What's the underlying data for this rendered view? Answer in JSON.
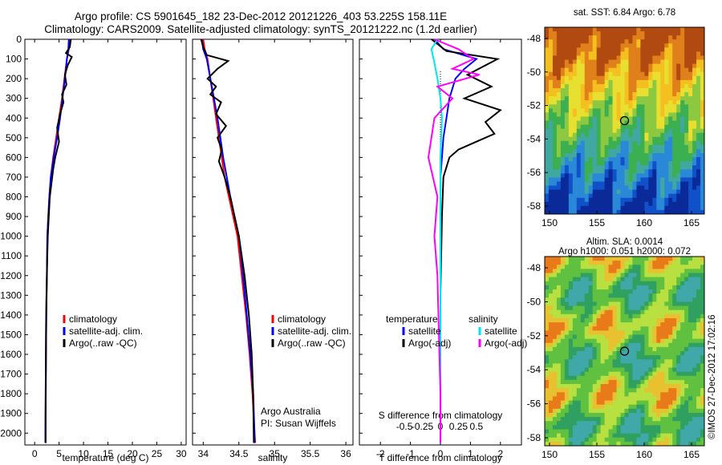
{
  "header": {
    "line1": "Argo profile: CS 5901645_182 23-Dec-2012 20121226_403 53.225S 158.11E",
    "line2": "Climatology: CARS2009. Satellite-adjusted climatology: synTS_20121222.nc (1.2d earlier)"
  },
  "colors": {
    "climatology": "#ff0000",
    "satellite": "#0000ff",
    "argo": "#000000",
    "sat_salinity": "#00e5ee",
    "argo_adj_salinity": "#ff00ff"
  },
  "chart_data": [
    {
      "type": "line",
      "panel": "temperature",
      "xlabel": "temperature (deg C)",
      "xlim": [
        -2,
        31
      ],
      "ylim": [
        2060,
        0
      ],
      "xticks": [
        0,
        5,
        10,
        15,
        20,
        25,
        30
      ],
      "yticks": [
        0,
        100,
        200,
        300,
        400,
        500,
        600,
        700,
        800,
        900,
        1000,
        1100,
        1200,
        1300,
        1400,
        1500,
        1600,
        1700,
        1800,
        1900,
        2000
      ],
      "legend": {
        "position": "lower-center",
        "entries": [
          "climatology",
          "satellite-adj. clim.",
          "Argo(..raw -QC)"
        ]
      },
      "series": [
        {
          "name": "climatology",
          "color": "red",
          "x": [
            7.2,
            7.0,
            6.6,
            6.1,
            5.6,
            5.0,
            4.4,
            3.8,
            3.3,
            3.0,
            2.8,
            2.6,
            2.5,
            2.35,
            2.3,
            2.25,
            2.2,
            2.2
          ],
          "y": [
            0,
            50,
            100,
            200,
            300,
            400,
            500,
            600,
            700,
            800,
            900,
            1000,
            1200,
            1400,
            1600,
            1800,
            2000,
            2050
          ]
        },
        {
          "name": "satellite-adj. clim.",
          "color": "blue",
          "x": [
            7.0,
            6.9,
            6.6,
            6.2,
            5.7,
            5.2,
            4.6,
            3.9,
            3.3,
            3.0,
            2.8,
            2.6,
            2.5,
            2.35,
            2.3,
            2.25,
            2.2,
            2.2
          ],
          "y": [
            0,
            50,
            100,
            200,
            300,
            400,
            500,
            600,
            700,
            800,
            900,
            1000,
            1200,
            1400,
            1600,
            1800,
            2000,
            2050
          ]
        },
        {
          "name": "Argo(..raw -QC)",
          "color": "black",
          "x": [
            7.4,
            7.2,
            6.4,
            7.6,
            6.8,
            6.2,
            6.5,
            5.6,
            5.9,
            5.2,
            4.6,
            5.0,
            4.2,
            3.8,
            3.5,
            3.1,
            2.9,
            2.7,
            2.55,
            2.45,
            2.35,
            2.3,
            2.25,
            2.25
          ],
          "y": [
            0,
            40,
            70,
            90,
            130,
            180,
            230,
            280,
            320,
            380,
            450,
            520,
            600,
            660,
            720,
            800,
            900,
            1000,
            1150,
            1300,
            1500,
            1700,
            1900,
            2050
          ]
        }
      ]
    },
    {
      "type": "line",
      "panel": "salinity",
      "xlabel": "salinity",
      "xlim": [
        33.85,
        36.1
      ],
      "ylim": [
        2060,
        0
      ],
      "xticks": [
        34,
        34.5,
        35,
        35.5,
        36
      ],
      "legend": {
        "position": "lower-center",
        "entries": [
          "climatology",
          "satellite-adj. clim.",
          "Argo(..raw -QC)"
        ]
      },
      "annotations": [
        "Argo Australia",
        "PI: Susan Wijffels"
      ],
      "series": [
        {
          "name": "climatology",
          "color": "red",
          "x": [
            34.0,
            34.02,
            34.06,
            34.1,
            34.14,
            34.18,
            34.22,
            34.26,
            34.3,
            34.36,
            34.42,
            34.48,
            34.54,
            34.6,
            34.65,
            34.69,
            34.72,
            34.73
          ],
          "y": [
            0,
            50,
            100,
            200,
            300,
            400,
            500,
            600,
            700,
            800,
            900,
            1000,
            1200,
            1400,
            1600,
            1800,
            2000,
            2050
          ]
        },
        {
          "name": "satellite-adj. clim.",
          "color": "blue",
          "x": [
            33.98,
            34.0,
            34.05,
            34.1,
            34.15,
            34.2,
            34.24,
            34.28,
            34.33,
            34.38,
            34.44,
            34.5,
            34.56,
            34.61,
            34.66,
            34.7,
            34.72,
            34.72
          ],
          "y": [
            0,
            50,
            100,
            200,
            300,
            400,
            500,
            600,
            700,
            800,
            900,
            1000,
            1200,
            1400,
            1600,
            1800,
            2000,
            2050
          ]
        },
        {
          "name": "Argo(..raw -QC)",
          "color": "black",
          "x": [
            33.97,
            34.0,
            34.05,
            34.35,
            34.2,
            34.06,
            34.18,
            34.1,
            34.25,
            34.18,
            34.32,
            34.2,
            34.26,
            34.22,
            34.3,
            34.38,
            34.44,
            34.5,
            34.58,
            34.64,
            34.68,
            34.7,
            34.71
          ],
          "y": [
            0,
            40,
            80,
            110,
            150,
            200,
            240,
            280,
            320,
            380,
            440,
            500,
            560,
            620,
            700,
            800,
            900,
            1000,
            1200,
            1400,
            1600,
            1800,
            2050
          ]
        }
      ]
    },
    {
      "type": "line",
      "panel": "difference",
      "xlabel": "T difference from climatology",
      "secondary_xlabel": "S difference from climatology",
      "xlim": [
        -2.7,
        2.7
      ],
      "ylim": [
        2060,
        0
      ],
      "xticks": [
        -2,
        -1,
        0,
        1,
        2
      ],
      "secondary_xticks": [
        "-0.5",
        "-0.25",
        "0",
        "0.25",
        "0.5"
      ],
      "legend": {
        "position": "lower-center",
        "headers": [
          "temperature",
          "salinity"
        ],
        "entries": [
          "satellite",
          "Argo(-adj)",
          "satellite",
          "Argo(-adj)"
        ]
      },
      "series": [
        {
          "name": "satellite",
          "quantity": "temperature",
          "color": "blue",
          "x": [
            -0.2,
            0.1,
            1.2,
            0.8,
            0.5,
            0.3,
            0.2,
            0.1,
            0.05,
            0.0,
            0.0,
            0.0,
            0.0,
            0.0,
            0.0,
            0.0
          ],
          "y": [
            0,
            50,
            100,
            150,
            200,
            300,
            400,
            500,
            600,
            700,
            800,
            1000,
            1200,
            1500,
            1800,
            2050
          ]
        },
        {
          "name": "Argo(-adj)",
          "quantity": "temperature",
          "color": "black",
          "x": [
            -0.3,
            0.2,
            1.9,
            0.9,
            1.7,
            0.8,
            2.0,
            1.5,
            1.8,
            1.2,
            0.6,
            0.3,
            0.1,
            0.05,
            0.0,
            0.0
          ],
          "y": [
            0,
            60,
            100,
            180,
            240,
            300,
            360,
            420,
            480,
            520,
            560,
            600,
            700,
            900,
            1300,
            2050
          ]
        },
        {
          "name": "satellite",
          "quantity": "salinity",
          "color": "cyan",
          "x": [
            -0.1,
            -0.3,
            -0.2,
            -0.1,
            0.0,
            0.05,
            0.0,
            0.0,
            0.0,
            0.0
          ],
          "y": [
            0,
            50,
            120,
            200,
            300,
            400,
            600,
            900,
            1400,
            2050
          ]
        },
        {
          "name": "Argo(-adj)",
          "quantity": "salinity",
          "color": "magenta",
          "x": [
            -0.2,
            0.6,
            1.1,
            0.4,
            1.3,
            -0.1,
            0.4,
            -0.2,
            -0.4,
            -0.1,
            -0.2,
            -0.1,
            -0.05,
            0.0,
            0.0
          ],
          "y": [
            0,
            50,
            100,
            150,
            180,
            240,
            300,
            400,
            600,
            800,
            1000,
            1200,
            1500,
            1800,
            2050
          ]
        }
      ]
    }
  ],
  "maps": [
    {
      "name": "sst",
      "title_line1": "sat. SST: 6.84  Argo: 6.78",
      "title_line2": "",
      "yticks": [
        "-48",
        "-50",
        "-52",
        "-54",
        "-56",
        "-58"
      ],
      "xticks": [
        "150",
        "155",
        "160",
        "165"
      ]
    },
    {
      "name": "sla",
      "title_line1": "Altim. SLA: 0.0014",
      "title_line2": "Argo h1000: 0.051 h2000: 0.072",
      "yticks": [
        "-48",
        "-50",
        "-52",
        "-54",
        "-56",
        "-58"
      ],
      "xticks": [
        "150",
        "155",
        "160",
        "165"
      ]
    }
  ],
  "footer": {
    "stamp": "©IMOS 27-Dec-2012 17:02:16"
  }
}
